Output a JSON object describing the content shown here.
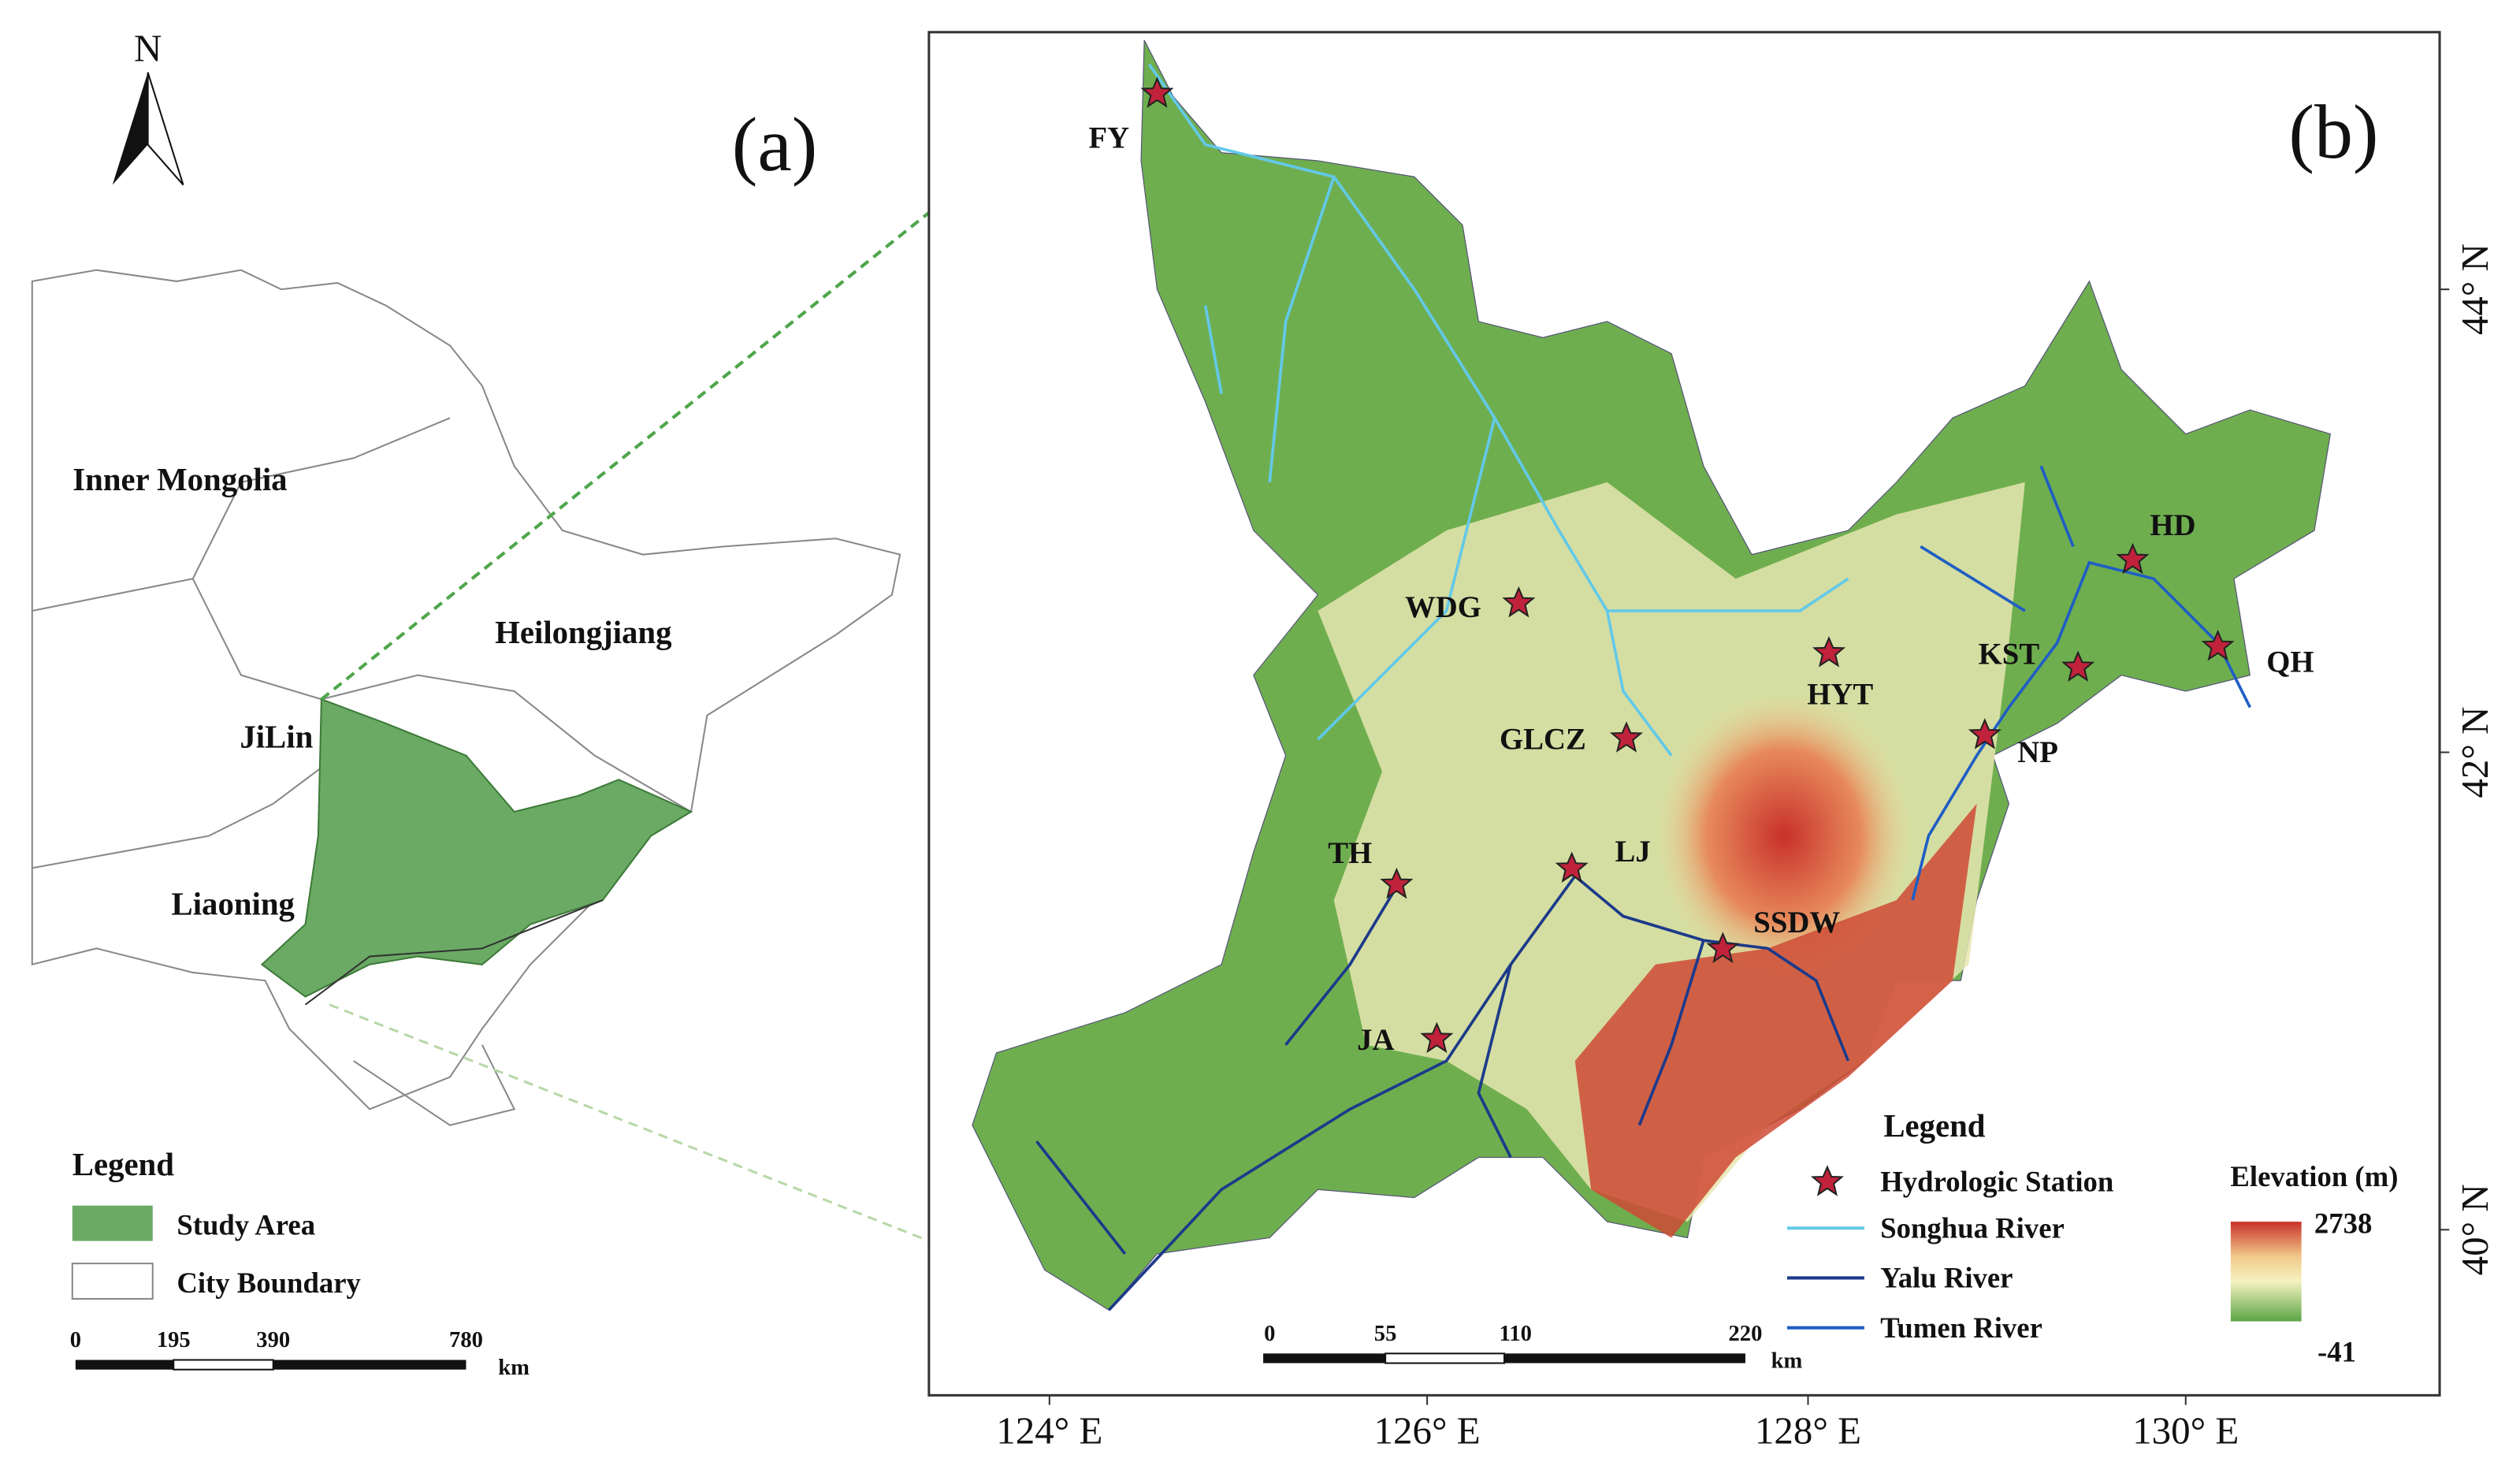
{
  "panel_a": {
    "label": "(a)",
    "north": "N",
    "regions": [
      "Inner Mongolia",
      "Heilongjiang",
      "JiLin",
      "Liaoning"
    ],
    "legend": {
      "title": "Legend",
      "items": [
        "Study Area",
        "City Boundary"
      ]
    },
    "scale_bar": {
      "ticks": [
        "0",
        "195",
        "390",
        "780"
      ],
      "unit": "km"
    }
  },
  "panel_b": {
    "label": "(b)",
    "stations": [
      "FY",
      "WDG",
      "GLCZ",
      "HYT",
      "KST",
      "NP",
      "HD",
      "QH",
      "TH",
      "LJ",
      "SSDW",
      "JA"
    ],
    "lon_labels": [
      "124° E",
      "126° E",
      "128° E",
      "130° E"
    ],
    "lat_labels": [
      "44° N",
      "42° N",
      "40° N"
    ],
    "legend": {
      "title": "Legend",
      "items": [
        "Hydrologic Station",
        "Songhua River",
        "Yalu River",
        "Tumen River"
      ]
    },
    "elevation": {
      "title": "Elevation (m)",
      "max": "2738",
      "min": "-41"
    },
    "scale_bar": {
      "ticks": [
        "0",
        "55",
        "110",
        "220"
      ],
      "unit": "km"
    }
  }
}
